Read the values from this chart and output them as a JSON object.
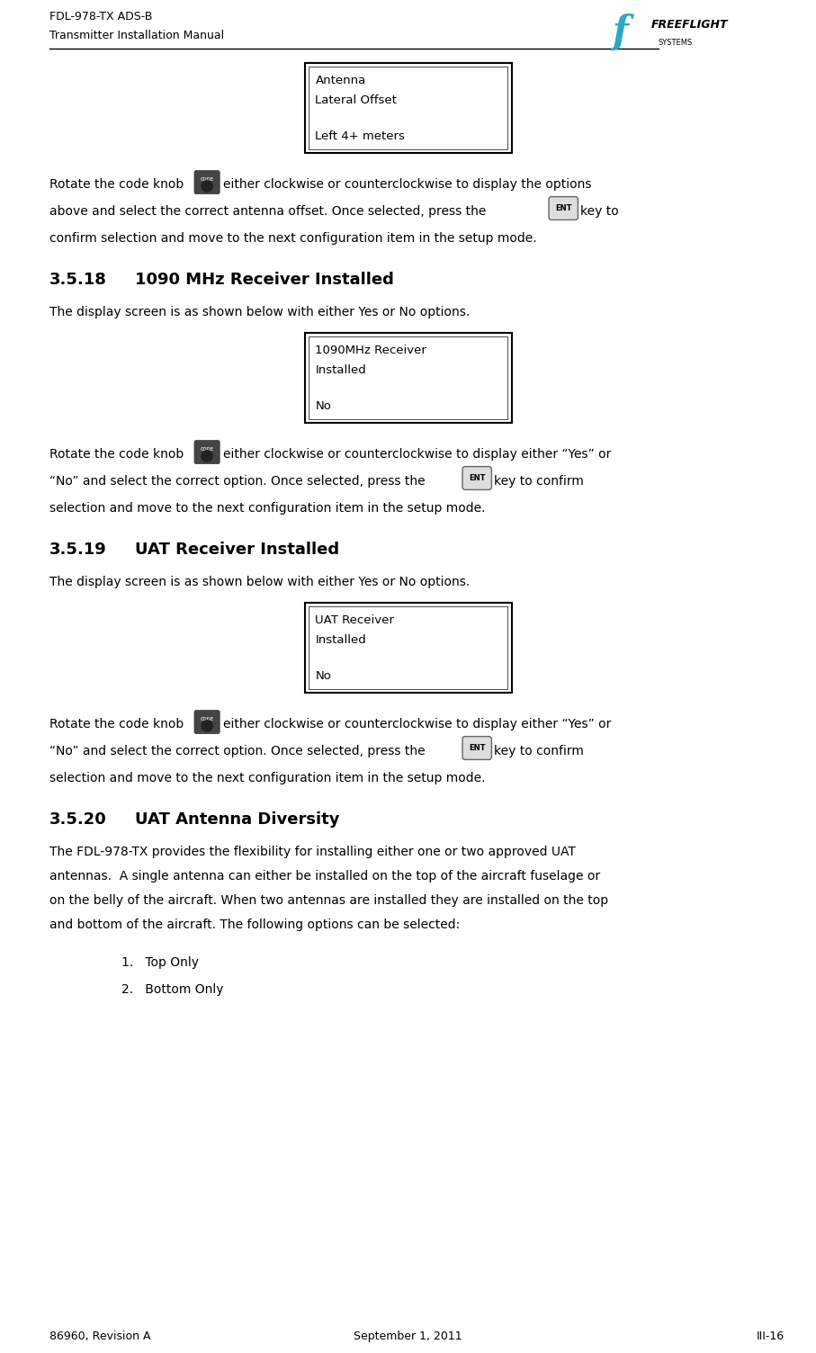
{
  "page_width": 9.07,
  "page_height": 15.04,
  "bg_color": "#ffffff",
  "header_line1": "FDL-978-TX ADS-B",
  "header_line2": "Transmitter Installation Manual",
  "header_font_size": 9,
  "footer_left": "86960, Revision A",
  "footer_center": "September 1, 2011",
  "footer_right": "III-16",
  "footer_font_size": 9,
  "section_318_num": "3.5.18",
  "section_318_title": "1090 MHz Receiver Installed",
  "section_319_num": "3.5.19",
  "section_319_title": "UAT Receiver Installed",
  "section_320_num": "3.5.20",
  "section_320_title": "UAT Antenna Diversity",
  "section_title_fontsize": 13,
  "body_fontsize": 10,
  "box1_lines": [
    "Antenna",
    "Lateral Offset",
    "",
    "Left 4+ meters"
  ],
  "box2_lines": [
    "1090MHz Receiver",
    "Installed",
    "",
    "No"
  ],
  "box3_lines": [
    "UAT Receiver",
    "Installed",
    "",
    "No"
  ],
  "text_color": "#000000",
  "box_border_color": "#000000",
  "list_items": [
    "1.   Top Only",
    "2.   Bottom Only"
  ],
  "para_320_lines": [
    "The FDL-978-TX provides the flexibility for installing either one or two approved UAT",
    "antennas.  A single antenna can either be installed on the top of the aircraft fuselage or",
    "on the belly of the aircraft. When two antennas are installed they are installed on the top",
    "and bottom of the aircraft. The following options can be selected:"
  ]
}
